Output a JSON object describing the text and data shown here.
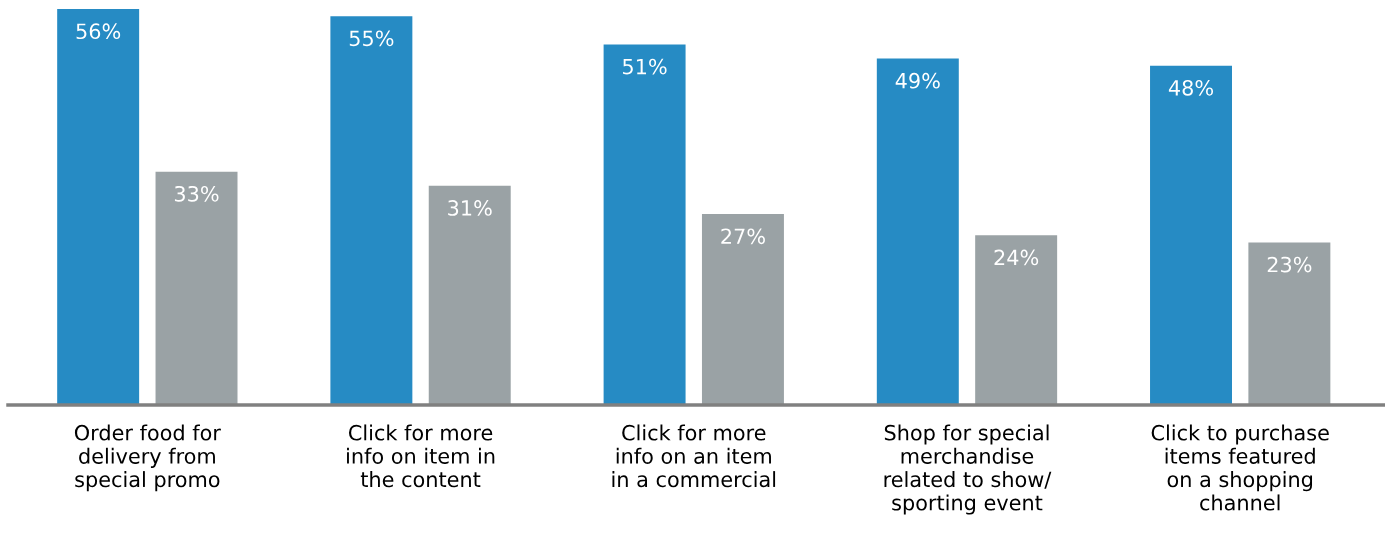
{
  "chart_data": {
    "type": "bar",
    "categories": [
      "Order food for\ndelivery from\nspecial promo",
      "Click for more\ninfo on item in\nthe content",
      "Click for more\ninfo on an item\nin a commercial",
      "Shop for special\nmerchandise\nrelated to show/\nsporting event",
      "Click to purchase\nitems featured\non a shopping\nchannel"
    ],
    "series": [
      {
        "color": "#268bc4",
        "values": [
          56,
          55,
          51,
          49,
          48
        ],
        "value_labels": [
          "56%",
          "55%",
          "51%",
          "49%",
          "48%"
        ]
      },
      {
        "color": "#9aa2a5",
        "values": [
          33,
          31,
          27,
          24,
          23
        ],
        "value_labels": [
          "33%",
          "31%",
          "27%",
          "24%",
          "23%"
        ]
      }
    ],
    "tick_labels": "x",
    "grid": false,
    "legend": false
  }
}
